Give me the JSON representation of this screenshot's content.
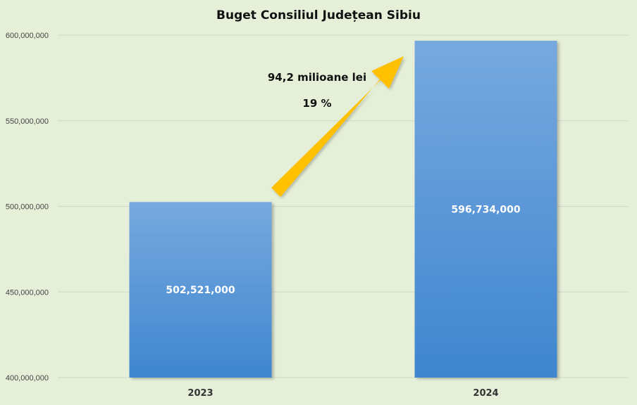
{
  "chart_data": {
    "type": "bar",
    "title": "Buget Consiliul Județean Sibiu",
    "categories": [
      "2023",
      "2024"
    ],
    "values": [
      502521000,
      596734000
    ],
    "value_labels": [
      "502,521,000",
      "596,734,000"
    ],
    "ylim": [
      400000000,
      600000000
    ],
    "yticks": [
      400000000,
      450000000,
      500000000,
      550000000,
      600000000
    ],
    "ytick_labels": [
      "400,000,000",
      "450,000,000",
      "500,000,000",
      "550,000,000",
      "600,000,000"
    ],
    "grid": true,
    "annotations": {
      "difference": "94,2 milioane lei",
      "percent": "19 %"
    },
    "colors": {
      "background": "#e6f0d9",
      "bar_top": "#77a9df",
      "bar_bottom": "#3f86cf",
      "arrow": "#ffc000",
      "grid": "#cfd9c6"
    }
  }
}
